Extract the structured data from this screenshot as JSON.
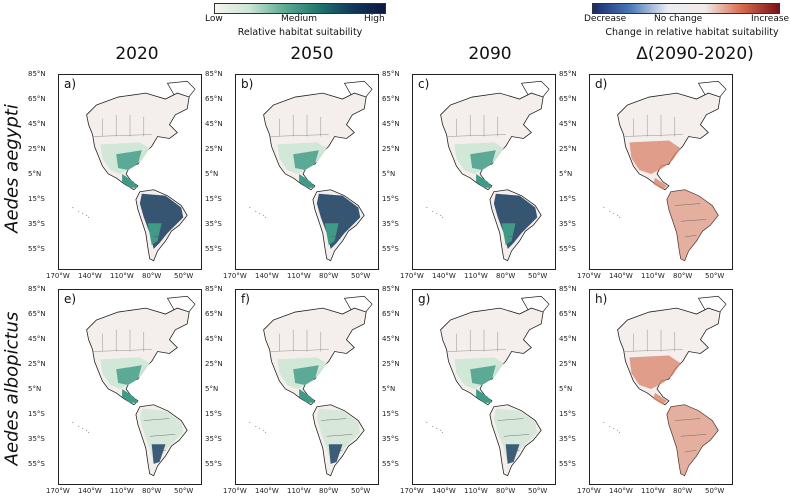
{
  "colorbar_suitability": {
    "low": "Low",
    "medium": "Medium",
    "high": "High",
    "title": "Relative habitat suitability",
    "colors": [
      "#f7f4ee",
      "#cde5d6",
      "#5fae95",
      "#22786f",
      "#123a5c",
      "#0b1840"
    ]
  },
  "colorbar_change": {
    "decrease": "Decrease",
    "nochange": "No change",
    "increase": "Increase",
    "title": "Change in relative habitat suitability",
    "colors": [
      "#1a2a6c",
      "#4a78b8",
      "#e9edf3",
      "#f2ece8",
      "#d86a4e",
      "#7a1018"
    ]
  },
  "columns": [
    "2020",
    "2050",
    "2090",
    "Δ(2090-2020)"
  ],
  "rows": [
    "Aedes aegypti",
    "Aedes albopictus"
  ],
  "panel_labels": [
    "a)",
    "b)",
    "c)",
    "d)",
    "e)",
    "f)",
    "g)",
    "h)"
  ],
  "lat_ticks": [
    "85°N",
    "65°N",
    "45°N",
    "25°N",
    "5°N",
    "15°S",
    "35°S",
    "55°S"
  ],
  "lon_ticks": [
    "170°W",
    "140°W",
    "110°W",
    "80°W",
    "50°W"
  ],
  "colors": {
    "land_base": "#f4efec",
    "border": "#222222",
    "suitability_low": "#cfe6d7",
    "suitability_mid": "#3f9a86",
    "suitability_high": "#143a5e",
    "change_increase": "#d9836a"
  }
}
